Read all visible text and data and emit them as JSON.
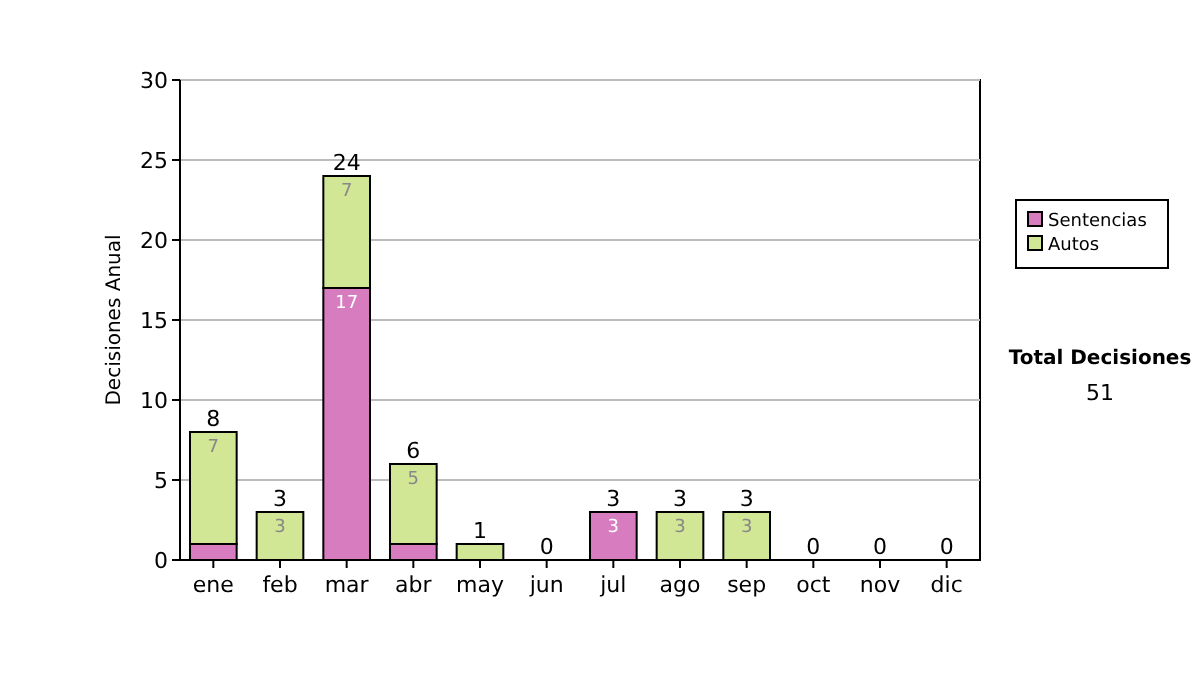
{
  "chart_data": {
    "type": "bar",
    "stacked": true,
    "ylabel": "Decisiones Anual",
    "categories": [
      "ene",
      "feb",
      "mar",
      "abr",
      "may",
      "jun",
      "jul",
      "ago",
      "sep",
      "oct",
      "nov",
      "dic"
    ],
    "series": [
      {
        "name": "Sentencias",
        "color": "#d67cbf",
        "values": [
          1,
          0,
          17,
          1,
          0,
          0,
          3,
          0,
          0,
          0,
          0,
          0
        ],
        "value_labels": [
          null,
          null,
          "17",
          null,
          null,
          null,
          "3",
          null,
          null,
          null,
          null,
          null
        ]
      },
      {
        "name": "Autos",
        "color": "#d1e796",
        "values": [
          7,
          3,
          7,
          5,
          1,
          0,
          0,
          3,
          3,
          0,
          0,
          0
        ],
        "value_labels": [
          "7",
          "3",
          "7",
          "5",
          null,
          null,
          null,
          "3",
          "3",
          null,
          null,
          null
        ]
      }
    ],
    "totals": [
      "8",
      "3",
      "24",
      "6",
      "1",
      "0",
      "3",
      "3",
      "3",
      "0",
      "0",
      "0"
    ],
    "ylim": [
      0,
      30
    ],
    "yticks": [
      0,
      5,
      10,
      15,
      20,
      25,
      30
    ],
    "grid": "y",
    "legend": "right",
    "annotations": [
      "Total Decisiones",
      "51"
    ]
  }
}
